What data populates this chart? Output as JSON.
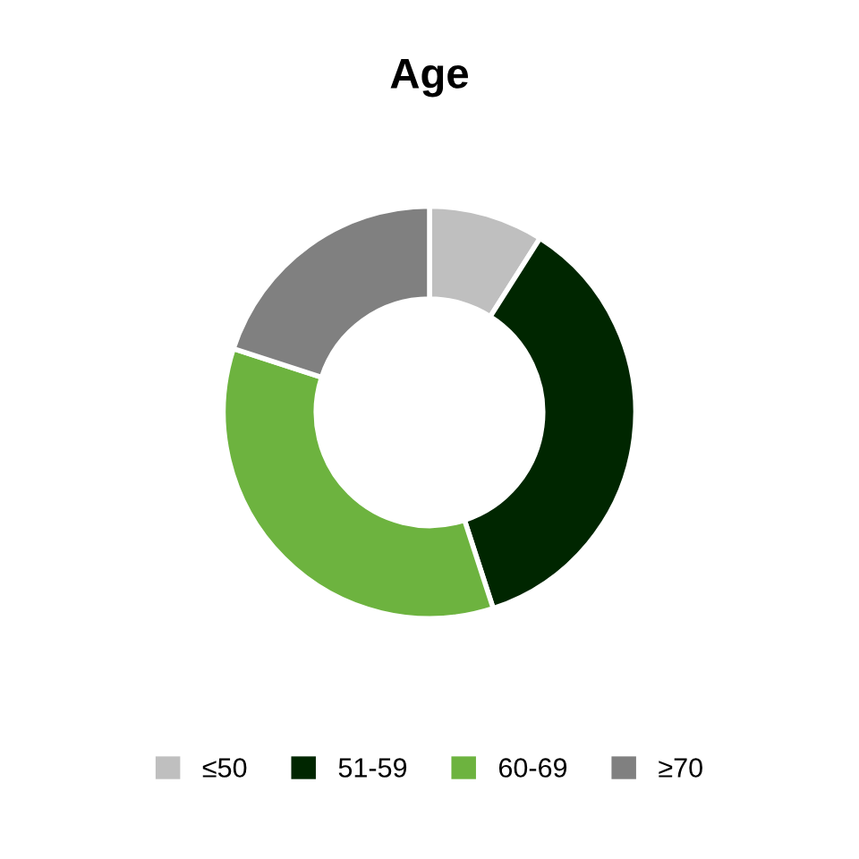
{
  "chart_data": {
    "type": "donut",
    "title": "Age",
    "categories": [
      "≤50",
      "51-59",
      "60-69",
      "≥70"
    ],
    "values": [
      9,
      36,
      35,
      20
    ],
    "colors": [
      "#bfbfbf",
      "#002600",
      "#6db33f",
      "#808080"
    ],
    "legend": "bottom"
  }
}
